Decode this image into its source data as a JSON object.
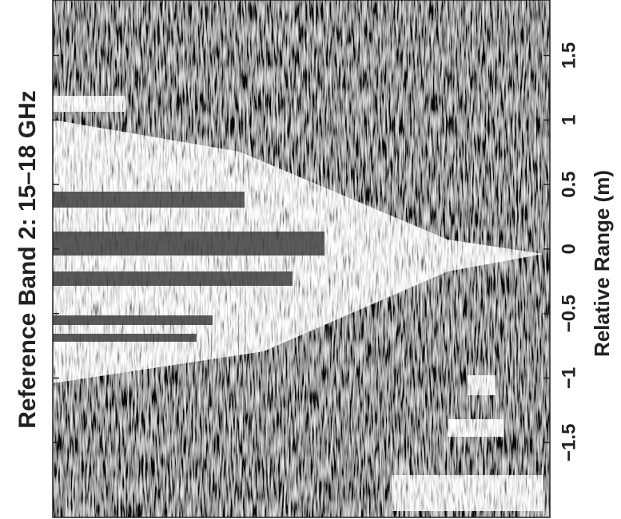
{
  "chart_data": {
    "type": "image",
    "title": "Reference Band 2: 15–18 GHz",
    "xlabel": "Relative Range (m)",
    "xlim": [
      -2.08,
      1.93
    ],
    "xticks": [
      {
        "value": -1.5,
        "label": "−1.5"
      },
      {
        "value": -1,
        "label": "−1"
      },
      {
        "value": -0.5,
        "label": "−0.5"
      },
      0,
      0.5,
      1,
      1.5
    ]
  }
}
